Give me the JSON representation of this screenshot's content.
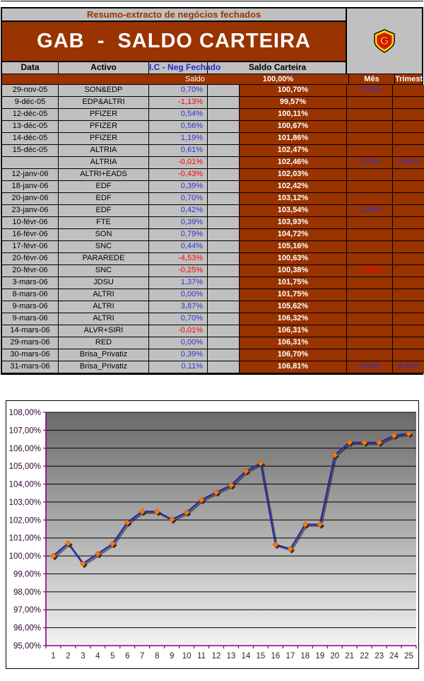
{
  "colors": {
    "brown": "#993300",
    "cell_gray": "#C0C0C0",
    "value_blue": "#3333CC",
    "value_red": "#FF0000",
    "axis_purple": "#800080",
    "series_line": "#2A2AA0",
    "marker_orange": "#FF7700"
  },
  "header": {
    "subtitle": "Resumo-extracto de negócios fechados",
    "title": "GAB  -  SALDO CARTEIRA",
    "logo": "shield-G-badge"
  },
  "table": {
    "columns": {
      "date": "Data",
      "asset": "Activo",
      "ic": "I.C - Neg Fechado",
      "saldo": "Saldo Carteira",
      "month": "Mês",
      "quarter": "Trimestre"
    },
    "subheader": {
      "label": "Saldo acumulado",
      "base": "100,00%"
    },
    "rows": [
      {
        "date": "29-nov-05",
        "asset": "SON&EDP",
        "ic": "0,70%",
        "saldo": "100,70%",
        "month": "0,70%",
        "quarter": ""
      },
      {
        "date": "9-déc-05",
        "asset": "EDP&ALTRI",
        "ic": "-1,13%",
        "saldo": "99,57%",
        "month": "",
        "quarter": ""
      },
      {
        "date": "12-déc-05",
        "asset": "PFIZER",
        "ic": "0,54%",
        "saldo": "100,11%",
        "month": "",
        "quarter": ""
      },
      {
        "date": "13-déc-05",
        "asset": "PFIZER",
        "ic": "0,56%",
        "saldo": "100,67%",
        "month": "",
        "quarter": ""
      },
      {
        "date": "14-déc-05",
        "asset": "PFIZER",
        "ic": "1,19%",
        "saldo": "101,86%",
        "month": "",
        "quarter": ""
      },
      {
        "date": "15-déc-05",
        "asset": "ALTRIA",
        "ic": "0,61%",
        "saldo": "102,47%",
        "month": "",
        "quarter": ""
      },
      {
        "date": "",
        "asset": "ALTRIA",
        "ic": "-0,01%",
        "saldo": "102,46%",
        "month": "1,76%",
        "quarter": "2,46%"
      },
      {
        "date": "12-janv-06",
        "asset": "ALTRI+EADS",
        "ic": "-0,43%",
        "saldo": "102,03%",
        "month": "",
        "quarter": ""
      },
      {
        "date": "18-janv-06",
        "asset": "EDF",
        "ic": "0,39%",
        "saldo": "102,42%",
        "month": "",
        "quarter": ""
      },
      {
        "date": "20-janv-06",
        "asset": "EDF",
        "ic": "0,70%",
        "saldo": "103,12%",
        "month": "",
        "quarter": ""
      },
      {
        "date": "23-janv-06",
        "asset": "EDF",
        "ic": "0,42%",
        "saldo": "103,54%",
        "month": "1,08%",
        "quarter": ""
      },
      {
        "date": "10-févr-06",
        "asset": "FTE",
        "ic": "0,39%",
        "saldo": "103,93%",
        "month": "",
        "quarter": ""
      },
      {
        "date": "16-févr-06",
        "asset": "SON",
        "ic": "0,79%",
        "saldo": "104,72%",
        "month": "",
        "quarter": ""
      },
      {
        "date": "17-févr-06",
        "asset": "SNC",
        "ic": "0,44%",
        "saldo": "105,16%",
        "month": "",
        "quarter": ""
      },
      {
        "date": "20-févr-06",
        "asset": "PARAREDE",
        "ic": "-4,53%",
        "saldo": "100,63%",
        "month": "",
        "quarter": ""
      },
      {
        "date": "20-févr-06",
        "asset": "SNC",
        "ic": "-0,25%",
        "saldo": "100,38%",
        "month": "-3,16%",
        "quarter": ""
      },
      {
        "date": "3-mars-06",
        "asset": "JDSU",
        "ic": "1,37%",
        "saldo": "101,75%",
        "month": "",
        "quarter": ""
      },
      {
        "date": "8-mars-06",
        "asset": "ALTRI",
        "ic": "0,00%",
        "saldo": "101,75%",
        "month": "",
        "quarter": ""
      },
      {
        "date": "9-mars-06",
        "asset": "ALTRI",
        "ic": "3,87%",
        "saldo": "105,62%",
        "month": "",
        "quarter": ""
      },
      {
        "date": "9-mars-06",
        "asset": "ALTRI",
        "ic": "0,70%",
        "saldo": "106,32%",
        "month": "",
        "quarter": ""
      },
      {
        "date": "14-mars-06",
        "asset": "ALVR+SIRI",
        "ic": "-0,01%",
        "saldo": "106,31%",
        "month": "",
        "quarter": ""
      },
      {
        "date": "29-mars-06",
        "asset": "RED",
        "ic": "0,00%",
        "saldo": "106,31%",
        "month": "",
        "quarter": ""
      },
      {
        "date": "30-mars-06",
        "asset": "Brisa_Privatiz",
        "ic": "0,39%",
        "saldo": "106,70%",
        "month": "",
        "quarter": ""
      },
      {
        "date": "31-mars-06",
        "asset": "Brisa_Privatiz",
        "ic": "0,11%",
        "saldo": "106,81%",
        "month": "6,43%",
        "quarter": "4,35%"
      }
    ]
  },
  "chart_data": {
    "type": "line",
    "x": [
      1,
      2,
      3,
      4,
      5,
      6,
      7,
      8,
      9,
      10,
      11,
      12,
      13,
      14,
      15,
      16,
      17,
      18,
      19,
      20,
      21,
      22,
      23,
      24,
      25
    ],
    "values": [
      100.0,
      100.7,
      99.57,
      100.11,
      100.67,
      101.86,
      102.47,
      102.46,
      102.03,
      102.42,
      103.12,
      103.54,
      103.93,
      104.72,
      105.16,
      100.63,
      100.38,
      101.75,
      101.75,
      105.62,
      106.32,
      106.31,
      106.31,
      106.7,
      106.81
    ],
    "title": "",
    "xlabel": "",
    "ylabel": "",
    "ylim": [
      95,
      108
    ],
    "ytick_step": 1,
    "ytick_format": "0,00%",
    "grid": true,
    "legend": "none",
    "plot_bg_gradient": [
      "#6a6a6a",
      "#f2f2f2"
    ]
  }
}
